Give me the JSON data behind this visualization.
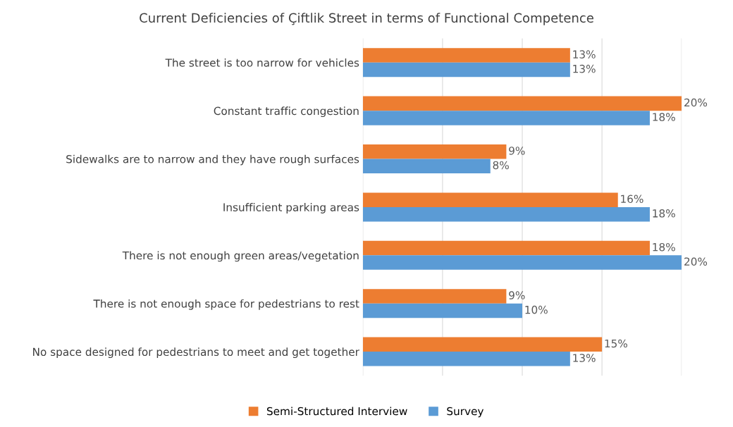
{
  "chart_data": {
    "type": "bar",
    "orientation": "horizontal",
    "title": "Current Deficiencies of Çiftlik Street in terms of Functional Competence",
    "categories": [
      "The street is too narrow for vehicles",
      "Constant traffic congestion",
      "Sidewalks are to narrow and they have rough surfaces",
      "Insufficient parking areas",
      "There is not enough green areas/vegetation",
      "There is not enough space for pedestrians to rest",
      "No space designed for pedestrians to meet and get together"
    ],
    "series": [
      {
        "name": "Semi-Structured Interview",
        "color": "#ed7d31",
        "values": [
          13,
          20,
          9,
          16,
          18,
          9,
          15
        ],
        "value_labels": [
          "13%",
          "20%",
          "9%",
          "16%",
          "18%",
          "9%",
          "15%"
        ]
      },
      {
        "name": "Survey",
        "color": "#5b9bd5",
        "values": [
          13,
          18,
          8,
          18,
          20,
          10,
          13
        ],
        "value_labels": [
          "13%",
          "18%",
          "8%",
          "18%",
          "20%",
          "10%",
          "13%"
        ]
      }
    ],
    "xlim": [
      0,
      20
    ],
    "xticks": [
      {
        "value": 0,
        "label": null
      },
      {
        "value": 5,
        "label": null
      },
      {
        "value": 10,
        "label": null
      },
      {
        "value": 15,
        "label": null
      },
      {
        "value": 20,
        "label": null
      }
    ],
    "tick_labels": "y",
    "grid": "x",
    "legend": "bottom"
  }
}
